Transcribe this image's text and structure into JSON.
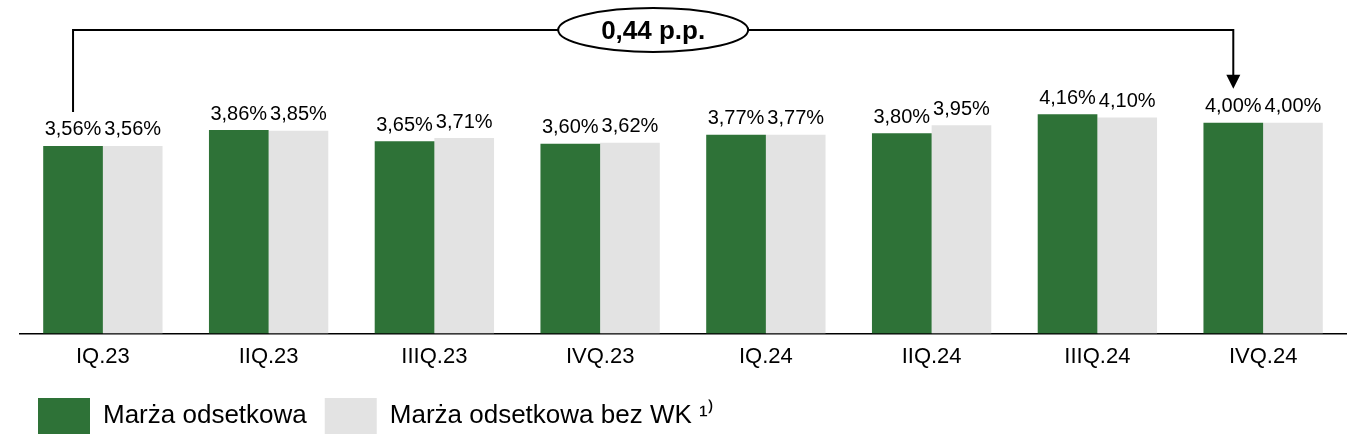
{
  "chart_data": {
    "type": "bar",
    "categories": [
      "IQ.23",
      "IIQ.23",
      "IIIQ.23",
      "IVQ.23",
      "IQ.24",
      "IIQ.24",
      "IIIQ.24",
      "IVQ.24"
    ],
    "series": [
      {
        "name": "Marża odsetkowa",
        "color": "#2e7237",
        "values": [
          3.56,
          3.86,
          3.65,
          3.6,
          3.77,
          3.8,
          4.16,
          4.0
        ],
        "value_labels": [
          "3,56%",
          "3,86%",
          "3,65%",
          "3,60%",
          "3,77%",
          "3,80%",
          "4,16%",
          "4,00%"
        ]
      },
      {
        "name": "Marża odsetkowa bez WK ¹⁾",
        "color": "#e3e3e3",
        "values": [
          3.56,
          3.85,
          3.71,
          3.62,
          3.77,
          3.95,
          4.1,
          4.0
        ],
        "value_labels": [
          "3,56%",
          "3,85%",
          "3,71%",
          "3,62%",
          "3,77%",
          "3,95%",
          "4,10%",
          "4,00%"
        ]
      }
    ],
    "annotations": [
      "0,44 p.p."
    ],
    "legend": "bottom left",
    "grid": false
  }
}
